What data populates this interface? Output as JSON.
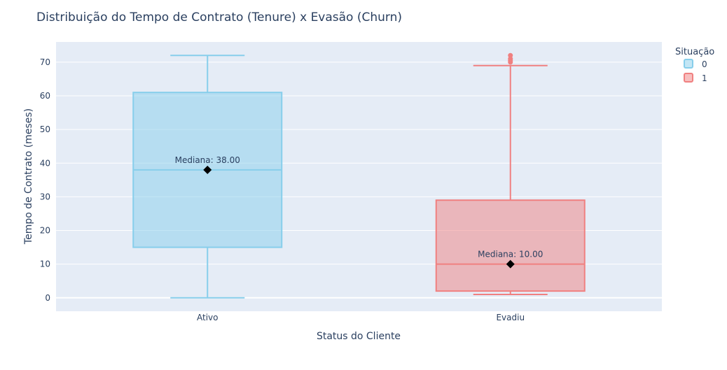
{
  "chart_data": {
    "type": "box",
    "title": "Distribuição do Tempo de Contrato (Tenure) x Evasão (Churn)",
    "xlabel": "Status do Cliente",
    "ylabel": "Tempo de Contrato (meses)",
    "ylim": [
      -4,
      76
    ],
    "yticks": [
      0,
      10,
      20,
      30,
      40,
      50,
      60,
      70
    ],
    "grid": true,
    "legend": {
      "title": "Situação",
      "placement": "top-right",
      "entries": [
        "0",
        "1"
      ]
    },
    "categories": [
      "Ativo",
      "Evadiu"
    ],
    "series": [
      {
        "name": "0",
        "category": "Ativo",
        "min": 0,
        "q1": 15,
        "median": 38,
        "q3": 61,
        "max": 72,
        "outliers": [],
        "color": "#87ceeb",
        "annotation": "Mediana: 38.00"
      },
      {
        "name": "1",
        "category": "Evadiu",
        "min": 1,
        "q1": 2,
        "median": 10,
        "q3": 29,
        "max": 69,
        "outliers": [
          70,
          70.5,
          71,
          72
        ],
        "color": "#f08080",
        "annotation": "Mediana: 10.00"
      }
    ]
  },
  "colors": {
    "plot_bg": "#e5ecf6",
    "grid": "#ffffff",
    "text": "#2a3f5f",
    "median_marker": "#000000"
  }
}
